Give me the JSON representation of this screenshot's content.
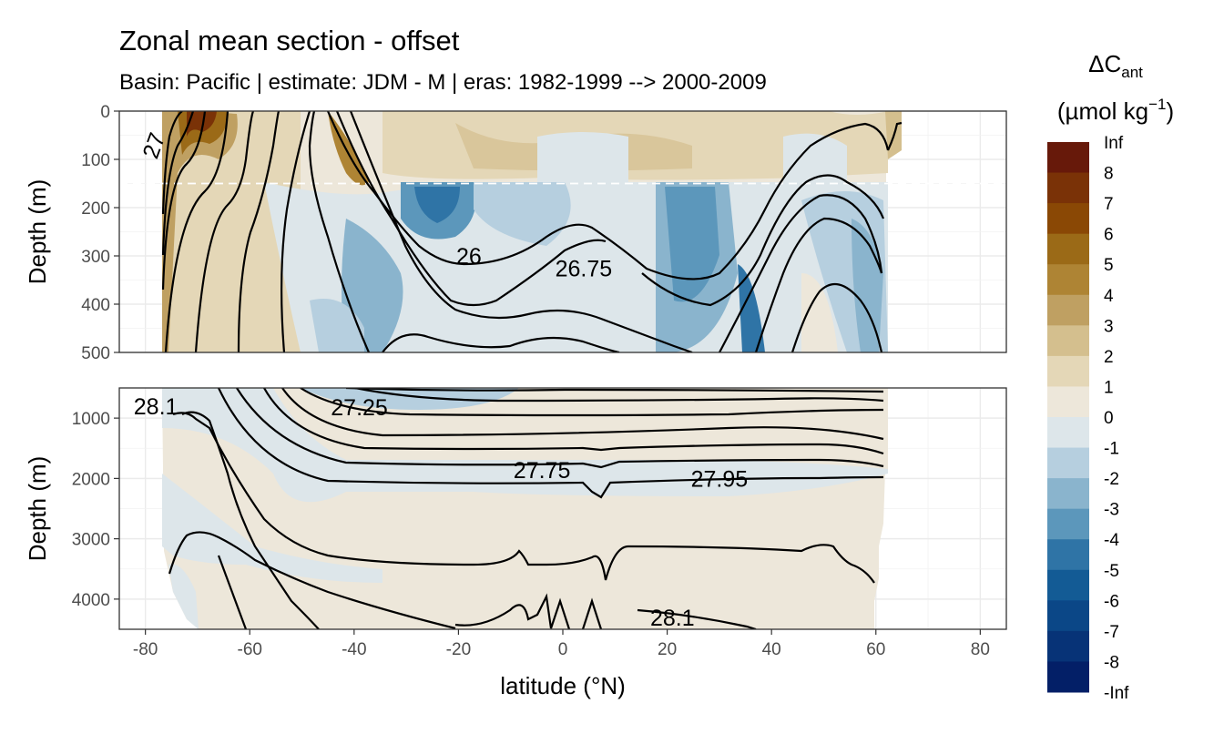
{
  "chart_data": {
    "type": "contour",
    "title": "Zonal mean section - offset",
    "subtitle": "Basin: Pacific | estimate: JDM - M | eras: 1982-1999 --> 2000-2009",
    "xlabel": "latitude (°N)",
    "xlim": [
      -85,
      85
    ],
    "x_ticks": [
      -80,
      -60,
      -40,
      -20,
      0,
      20,
      40,
      60,
      80
    ],
    "x_tick_labels": [
      "-80",
      "-60",
      "-40",
      "-20",
      "0",
      "20",
      "40",
      "60",
      "80"
    ],
    "panels": [
      {
        "name": "upper",
        "ylabel": "Depth (m)",
        "ylim": [
          0,
          500
        ],
        "y_ticks": [
          0,
          100,
          200,
          300,
          400,
          500
        ],
        "y_tick_labels": [
          "0",
          "100",
          "200",
          "300",
          "400",
          "500"
        ],
        "reference_depth_dashed": 150,
        "contour_labels": [
          {
            "text": "26",
            "lat": -18,
            "depth": 300
          },
          {
            "text": "26.75",
            "lat": 4,
            "depth": 325
          },
          {
            "text": "27",
            "lat": -77,
            "depth": 60
          }
        ]
      },
      {
        "name": "lower",
        "ylabel": "Depth (m)",
        "ylim": [
          500,
          4500
        ],
        "y_ticks": [
          1000,
          2000,
          3000,
          4000
        ],
        "y_tick_labels": [
          "1000",
          "2000",
          "3000",
          "4000"
        ],
        "contour_labels": [
          {
            "text": "28.1",
            "lat": -78,
            "depth": 800
          },
          {
            "text": "27.25",
            "lat": -39,
            "depth": 820
          },
          {
            "text": "27.75",
            "lat": -4,
            "depth": 1860
          },
          {
            "text": "27.95",
            "lat": 30,
            "depth": 2000
          },
          {
            "text": "28.1",
            "lat": 21,
            "depth": 4300
          }
        ]
      }
    ],
    "legend": {
      "title": "ΔC",
      "title_subscript": "ant",
      "unit_prefix": "(µmol kg",
      "unit_superscript": "−1",
      "unit_suffix": ")",
      "position": "right",
      "labels": [
        "Inf",
        "8",
        "7",
        "6",
        "5",
        "4",
        "3",
        "2",
        "1",
        "0",
        "-1",
        "-2",
        "-3",
        "-4",
        "-5",
        "-6",
        "-7",
        "-8",
        "-Inf"
      ],
      "colors": [
        "#67190a",
        "#7a3207",
        "#8a4805",
        "#9b6a17",
        "#ae8434",
        "#bfa062",
        "#d4bf8e",
        "#e4d7b7",
        "#ede7da",
        "#dde6ea",
        "#b6cfdf",
        "#8ab4cd",
        "#5c97bb",
        "#2f74a6",
        "#135b95",
        "#0b4787",
        "#073377",
        "#031f67"
      ]
    }
  }
}
